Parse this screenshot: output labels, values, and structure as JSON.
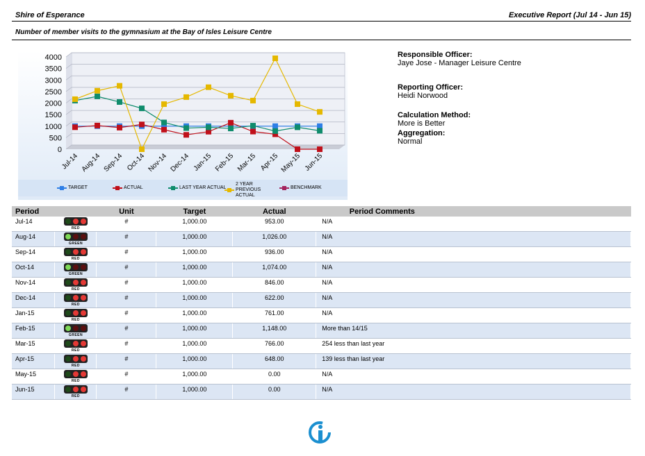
{
  "header": {
    "org": "Shire of Esperance",
    "report": "Executive Report (Jul 14 - Jun 15)",
    "subtitle": "Number of member visits to the gymnasium at the Bay of Isles Leisure Centre"
  },
  "chart_data": {
    "type": "line",
    "categories": [
      "Jul-14",
      "Aug-14",
      "Sep-14",
      "Oct-14",
      "Nov-14",
      "Dec-14",
      "Jan-15",
      "Feb-15",
      "Mar-15",
      "Apr-15",
      "May-15",
      "Jun-15"
    ],
    "ylim": [
      0,
      4000
    ],
    "yticks": [
      0,
      500,
      1000,
      1500,
      2000,
      2500,
      3000,
      3500,
      4000
    ],
    "grid": true,
    "legend": "bottom",
    "series": [
      {
        "name": "TARGET",
        "color": "#2f7fe6",
        "values": [
          1000,
          1000,
          1000,
          1000,
          1000,
          1000,
          1000,
          1000,
          1000,
          1000,
          1000,
          1000
        ]
      },
      {
        "name": "ACTUAL",
        "color": "#c0101a",
        "values": [
          953,
          1026,
          936,
          1074,
          846,
          622,
          761,
          1148,
          766,
          648,
          0,
          0
        ]
      },
      {
        "name": "LAST YEAR ACTUAL",
        "color": "#0f8c6c",
        "values": [
          2107,
          2290,
          2046,
          1771,
          1160,
          916,
          950,
          900,
          1020,
          787,
          950,
          800
        ]
      },
      {
        "name": "2 YEAR PREVIOUS ACTUAL",
        "color": "#e5b800",
        "values": [
          2168,
          2534,
          2748,
          0,
          1954,
          2259,
          2687,
          2320,
          2107,
          3939,
          1954,
          1618
        ]
      },
      {
        "name": "BENCHMARK",
        "color": "#a3245e",
        "values": [
          null,
          null,
          null,
          null,
          null,
          null,
          null,
          null,
          null,
          null,
          null,
          null
        ]
      }
    ]
  },
  "info": [
    {
      "label": "Responsible Officer:",
      "value": "Jaye Jose - Manager Leisure Centre"
    },
    {
      "label": "Reporting Officer:",
      "value": "Heidi Norwood"
    },
    {
      "label": "Calculation Method:",
      "value": "More is Better"
    },
    {
      "label": "Aggregation:",
      "value": "Normal"
    }
  ],
  "table": {
    "columns": [
      "Period",
      "Unit",
      "Target",
      "Actual",
      "Period Comments"
    ],
    "rows": [
      {
        "period": "Jul-14",
        "status": "RED",
        "light_color": "#e53935",
        "unit": "#",
        "target": "1,000.00",
        "actual": "953.00",
        "comment": "N/A"
      },
      {
        "period": "Aug-14",
        "status": "GREEN",
        "light_color": "#7ed957",
        "unit": "#",
        "target": "1,000.00",
        "actual": "1,026.00",
        "comment": "N/A"
      },
      {
        "period": "Sep-14",
        "status": "RED",
        "light_color": "#e53935",
        "unit": "#",
        "target": "1,000.00",
        "actual": "936.00",
        "comment": "N/A"
      },
      {
        "period": "Oct-14",
        "status": "GREEN",
        "light_color": "#7ed957",
        "unit": "#",
        "target": "1,000.00",
        "actual": "1,074.00",
        "comment": "N/A"
      },
      {
        "period": "Nov-14",
        "status": "RED",
        "light_color": "#e53935",
        "unit": "#",
        "target": "1,000.00",
        "actual": "846.00",
        "comment": "N/A"
      },
      {
        "period": "Dec-14",
        "status": "RED",
        "light_color": "#e53935",
        "unit": "#",
        "target": "1,000.00",
        "actual": "622.00",
        "comment": "N/A"
      },
      {
        "period": "Jan-15",
        "status": "RED",
        "light_color": "#e53935",
        "unit": "#",
        "target": "1,000.00",
        "actual": "761.00",
        "comment": "N/A"
      },
      {
        "period": "Feb-15",
        "status": "GREEN",
        "light_color": "#7ed957",
        "unit": "#",
        "target": "1,000.00",
        "actual": "1,148.00",
        "comment": "More than 14/15"
      },
      {
        "period": "Mar-15",
        "status": "RED",
        "light_color": "#e53935",
        "unit": "#",
        "target": "1,000.00",
        "actual": "766.00",
        "comment": "254 less than last year"
      },
      {
        "period": "Apr-15",
        "status": "RED",
        "light_color": "#e53935",
        "unit": "#",
        "target": "1,000.00",
        "actual": "648.00",
        "comment": "139 less than last year"
      },
      {
        "period": "May-15",
        "status": "RED",
        "light_color": "#e53935",
        "unit": "#",
        "target": "1,000.00",
        "actual": "0.00",
        "comment": "N/A"
      },
      {
        "period": "Jun-15",
        "status": "RED",
        "light_color": "#e53935",
        "unit": "#",
        "target": "1,000.00",
        "actual": "0.00",
        "comment": "N/A"
      }
    ]
  }
}
